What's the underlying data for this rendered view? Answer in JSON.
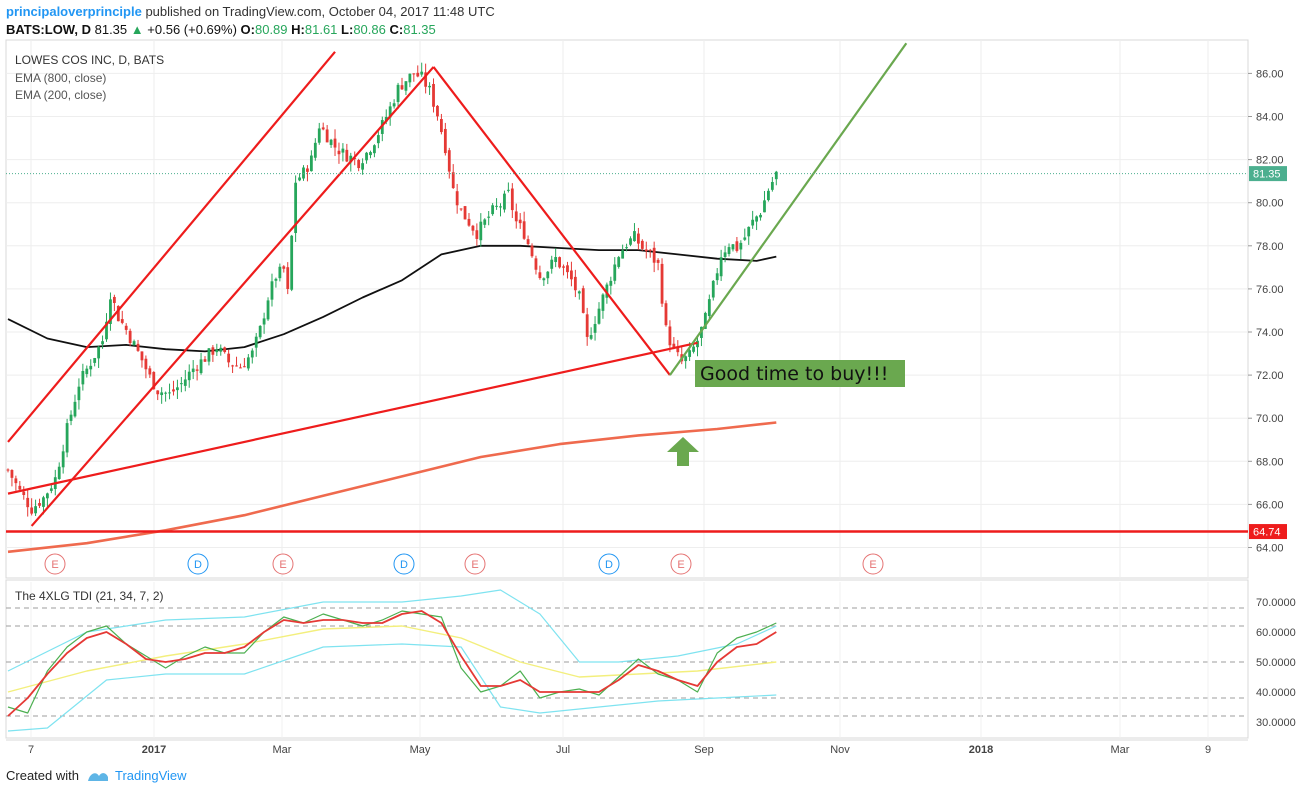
{
  "header": {
    "author": "principaloverprinciple",
    "published": " published on TradingView.com, October 04, 2017 11:48 UTC"
  },
  "ticker": {
    "symbol": "BATS:LOW, D",
    "price": "81.35",
    "change": "+0.56 (+0.69%)",
    "open_label": "O:",
    "open": "80.89",
    "high_label": "H:",
    "high": "81.61",
    "low_label": "L:",
    "low": "80.86",
    "close_label": "C:",
    "close": "81.35"
  },
  "legend": {
    "title": "LOWES COS INC, D, BATS",
    "ema800": "EMA (800, close)",
    "ema200": "EMA (200, close)"
  },
  "indicator": {
    "title": "The 4XLG TDI (21, 34, 7, 2)"
  },
  "annotation": {
    "text": "Good time to buy!!!"
  },
  "footer": {
    "created_with": "Created with",
    "brand": "TradingView"
  },
  "colors": {
    "up": "#26a65b",
    "down": "#e53935",
    "red_line": "#ee1c1c",
    "green_line": "#6aa84f",
    "ema200": "#111111",
    "ema800": "#ef6a4e",
    "tdi_green": "#4caf50",
    "tdi_red": "#e53935",
    "tdi_yellow": "#f3ef7d",
    "tdi_band": "#7fe3f0",
    "callout_bg": "#6aa84f",
    "price_label_bg": "#4caf8f",
    "support_label_bg": "#ee1c1c",
    "dividend_color": "#2196f3",
    "earnings_color": "#e57373"
  },
  "chart_data": {
    "type": "candlestick",
    "x_axis_labels": [
      "7",
      "2017",
      "Mar",
      "May",
      "Jul",
      "Sep",
      "Nov",
      "2018",
      "Mar",
      "9"
    ],
    "price_axis_ticks": [
      "86.00",
      "84.00",
      "82.00",
      "80.00",
      "78.00",
      "76.00",
      "74.00",
      "72.00",
      "70.00",
      "68.00",
      "66.00",
      "64.00"
    ],
    "price_ylim": [
      63.0,
      87.5
    ],
    "last_price": "81.35",
    "support_level": "64.74",
    "events": [
      "E",
      "D",
      "E",
      "D",
      "E",
      "D",
      "E",
      "E"
    ],
    "price_path": [
      [
        0,
        67.6
      ],
      [
        3,
        66.6
      ],
      [
        6,
        65.8
      ],
      [
        9,
        66.3
      ],
      [
        12,
        67.2
      ],
      [
        15,
        69.5
      ],
      [
        18,
        71.6
      ],
      [
        21,
        72.6
      ],
      [
        24,
        73.6
      ],
      [
        26,
        75.8
      ],
      [
        28,
        74.7
      ],
      [
        30,
        74.1
      ],
      [
        32,
        73.4
      ],
      [
        34,
        72.7
      ],
      [
        36,
        71.9
      ],
      [
        38,
        71.3
      ],
      [
        41,
        71.1
      ],
      [
        44,
        71.6
      ],
      [
        47,
        72.3
      ],
      [
        50,
        72.8
      ],
      [
        53,
        73.3
      ],
      [
        56,
        72.6
      ],
      [
        59,
        72.4
      ],
      [
        62,
        73.0
      ],
      [
        64,
        74.1
      ],
      [
        66,
        75.6
      ],
      [
        68,
        76.6
      ],
      [
        70,
        76.9
      ],
      [
        71,
        75.8
      ],
      [
        73,
        81.0
      ],
      [
        75,
        81.4
      ],
      [
        77,
        82.0
      ],
      [
        79,
        83.6
      ],
      [
        81,
        83.1
      ],
      [
        83,
        82.6
      ],
      [
        85,
        82.3
      ],
      [
        87,
        82.1
      ],
      [
        89,
        81.9
      ],
      [
        91,
        82.3
      ],
      [
        93,
        82.9
      ],
      [
        95,
        83.6
      ],
      [
        97,
        84.4
      ],
      [
        99,
        85.3
      ],
      [
        101,
        85.7
      ],
      [
        103,
        86.0
      ],
      [
        105,
        85.8
      ],
      [
        107,
        85.2
      ],
      [
        109,
        84.1
      ],
      [
        111,
        82.6
      ],
      [
        113,
        80.6
      ],
      [
        115,
        79.6
      ],
      [
        117,
        79.1
      ],
      [
        119,
        78.6
      ],
      [
        121,
        79.1
      ],
      [
        123,
        79.6
      ],
      [
        125,
        79.9
      ],
      [
        127,
        80.4
      ],
      [
        129,
        79.1
      ],
      [
        131,
        78.6
      ],
      [
        133,
        77.6
      ],
      [
        135,
        76.6
      ],
      [
        137,
        76.9
      ],
      [
        139,
        77.4
      ],
      [
        141,
        76.9
      ],
      [
        143,
        76.4
      ],
      [
        145,
        75.6
      ],
      [
        147,
        73.6
      ],
      [
        149,
        74.6
      ],
      [
        151,
        75.6
      ],
      [
        153,
        76.6
      ],
      [
        155,
        77.6
      ],
      [
        157,
        78.1
      ],
      [
        159,
        78.4
      ],
      [
        161,
        77.9
      ],
      [
        163,
        77.6
      ],
      [
        165,
        77.1
      ],
      [
        167,
        74.1
      ],
      [
        169,
        73.1
      ],
      [
        171,
        72.6
      ],
      [
        173,
        72.9
      ],
      [
        175,
        73.6
      ],
      [
        177,
        74.6
      ],
      [
        179,
        76.1
      ],
      [
        181,
        77.6
      ],
      [
        183,
        78.1
      ],
      [
        185,
        77.9
      ],
      [
        187,
        78.4
      ],
      [
        189,
        79.1
      ],
      [
        191,
        79.6
      ],
      [
        193,
        80.6
      ],
      [
        195,
        81.35
      ]
    ],
    "ema200": [
      [
        0,
        74.6
      ],
      [
        10,
        73.7
      ],
      [
        20,
        73.3
      ],
      [
        30,
        73.4
      ],
      [
        40,
        73.2
      ],
      [
        50,
        73.1
      ],
      [
        60,
        73.3
      ],
      [
        70,
        73.9
      ],
      [
        80,
        74.7
      ],
      [
        90,
        75.6
      ],
      [
        100,
        76.4
      ],
      [
        110,
        77.6
      ],
      [
        120,
        78.0
      ],
      [
        130,
        78.0
      ],
      [
        140,
        77.9
      ],
      [
        150,
        77.8
      ],
      [
        160,
        77.8
      ],
      [
        170,
        77.6
      ],
      [
        180,
        77.4
      ],
      [
        190,
        77.3
      ],
      [
        195,
        77.5
      ]
    ],
    "ema800": [
      [
        0,
        63.8
      ],
      [
        20,
        64.2
      ],
      [
        40,
        64.8
      ],
      [
        60,
        65.5
      ],
      [
        80,
        66.4
      ],
      [
        100,
        67.3
      ],
      [
        120,
        68.2
      ],
      [
        140,
        68.8
      ],
      [
        160,
        69.2
      ],
      [
        180,
        69.5
      ],
      [
        195,
        69.8
      ]
    ],
    "trend_lines": [
      {
        "from": [
          0,
          68.9
        ],
        "to": [
          83,
          87.0
        ],
        "color": "red"
      },
      {
        "from": [
          6,
          65.0
        ],
        "to": [
          108,
          86.3
        ],
        "color": "red"
      },
      {
        "from": [
          108,
          86.3
        ],
        "to": [
          168,
          72.0
        ],
        "color": "red"
      },
      {
        "from": [
          0,
          66.5
        ],
        "to": [
          175,
          73.5
        ],
        "color": "red"
      },
      {
        "from": [
          168,
          72.0
        ],
        "to": [
          228,
          87.4
        ],
        "color": "green"
      }
    ],
    "tdi": {
      "ticks": [
        "70.0000",
        "60.0000",
        "50.0000",
        "40.0000",
        "30.0000"
      ],
      "ylim": [
        26,
        76
      ],
      "levels": [
        68,
        62,
        50,
        38,
        32
      ],
      "price_line": [
        [
          0,
          35
        ],
        [
          5,
          33
        ],
        [
          10,
          47
        ],
        [
          15,
          55
        ],
        [
          20,
          60
        ],
        [
          25,
          62
        ],
        [
          30,
          56
        ],
        [
          35,
          52
        ],
        [
          40,
          48
        ],
        [
          45,
          52
        ],
        [
          50,
          55
        ],
        [
          55,
          53
        ],
        [
          60,
          53
        ],
        [
          65,
          60
        ],
        [
          70,
          65
        ],
        [
          75,
          63
        ],
        [
          80,
          66
        ],
        [
          85,
          64
        ],
        [
          90,
          62
        ],
        [
          95,
          64
        ],
        [
          100,
          67
        ],
        [
          105,
          66
        ],
        [
          110,
          65
        ],
        [
          115,
          48
        ],
        [
          120,
          40
        ],
        [
          125,
          42
        ],
        [
          130,
          47
        ],
        [
          135,
          38
        ],
        [
          140,
          40
        ],
        [
          145,
          41
        ],
        [
          150,
          39
        ],
        [
          155,
          45
        ],
        [
          160,
          51
        ],
        [
          165,
          46
        ],
        [
          170,
          44
        ],
        [
          175,
          40
        ],
        [
          180,
          53
        ],
        [
          185,
          58
        ],
        [
          190,
          60
        ],
        [
          195,
          63
        ]
      ],
      "signal_line": [
        [
          0,
          32
        ],
        [
          5,
          38
        ],
        [
          10,
          46
        ],
        [
          15,
          53
        ],
        [
          20,
          58
        ],
        [
          25,
          60
        ],
        [
          30,
          56
        ],
        [
          35,
          51
        ],
        [
          40,
          50
        ],
        [
          45,
          51
        ],
        [
          50,
          53
        ],
        [
          55,
          53
        ],
        [
          60,
          55
        ],
        [
          65,
          60
        ],
        [
          70,
          64
        ],
        [
          75,
          63
        ],
        [
          80,
          64
        ],
        [
          85,
          64
        ],
        [
          90,
          63
        ],
        [
          95,
          63
        ],
        [
          100,
          66
        ],
        [
          105,
          67
        ],
        [
          110,
          63
        ],
        [
          115,
          52
        ],
        [
          120,
          42
        ],
        [
          125,
          42
        ],
        [
          130,
          44
        ],
        [
          135,
          40
        ],
        [
          140,
          40
        ],
        [
          145,
          40
        ],
        [
          150,
          40
        ],
        [
          155,
          44
        ],
        [
          160,
          49
        ],
        [
          165,
          47
        ],
        [
          170,
          44
        ],
        [
          175,
          42
        ],
        [
          180,
          50
        ],
        [
          185,
          55
        ],
        [
          190,
          56
        ],
        [
          195,
          60
        ]
      ],
      "mid_line": [
        [
          0,
          40
        ],
        [
          20,
          47
        ],
        [
          40,
          52
        ],
        [
          60,
          56
        ],
        [
          80,
          61
        ],
        [
          100,
          62
        ],
        [
          115,
          58
        ],
        [
          130,
          50
        ],
        [
          145,
          45
        ],
        [
          160,
          46
        ],
        [
          175,
          47
        ],
        [
          195,
          50
        ]
      ],
      "upper_band": [
        [
          0,
          47
        ],
        [
          20,
          60
        ],
        [
          40,
          64
        ],
        [
          60,
          65
        ],
        [
          80,
          70
        ],
        [
          100,
          70
        ],
        [
          115,
          72
        ],
        [
          125,
          74
        ],
        [
          135,
          66
        ],
        [
          145,
          50
        ],
        [
          155,
          50
        ],
        [
          170,
          52
        ],
        [
          185,
          56
        ],
        [
          195,
          62
        ]
      ],
      "lower_band": [
        [
          0,
          27
        ],
        [
          10,
          28
        ],
        [
          25,
          44
        ],
        [
          40,
          46
        ],
        [
          60,
          46
        ],
        [
          80,
          55
        ],
        [
          100,
          56
        ],
        [
          115,
          55
        ],
        [
          125,
          35
        ],
        [
          135,
          33
        ],
        [
          150,
          35
        ],
        [
          165,
          37
        ],
        [
          180,
          38
        ],
        [
          195,
          39
        ]
      ]
    }
  }
}
